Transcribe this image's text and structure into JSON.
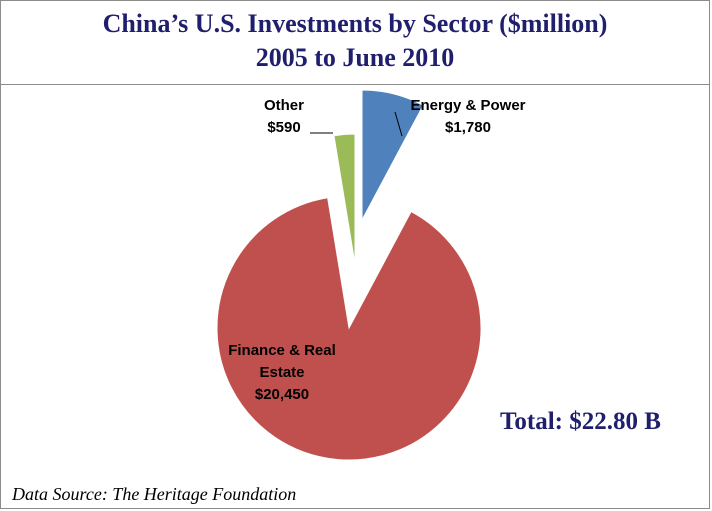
{
  "title_line1": "China’s U.S. Investments by Sector ($million)",
  "title_line2": "2005 to June 2010",
  "total_label": "Total: $22.80 B",
  "source_label": "Data Source: The Heritage Foundation",
  "colors": {
    "title_text": "#1f1f6e",
    "energy": "#4f81bd",
    "finance": "#c0504d",
    "other": "#9bbb59",
    "border": "#8c8c8c"
  },
  "chart_data": {
    "type": "pie",
    "title": "China’s U.S. Investments by Sector ($million)",
    "subtitle": "2005 to June 2010",
    "slices": [
      {
        "name": "Energy & Power",
        "label_lines": [
          "Energy & Power"
        ],
        "value_label": "$1,780",
        "value": 1780,
        "exploded": true
      },
      {
        "name": "Finance & Real Estate",
        "label_lines": [
          "Finance & Real",
          "Estate"
        ],
        "value_label": "$20,450",
        "value": 20450,
        "exploded": true
      },
      {
        "name": "Other",
        "label_lines": [
          "Other"
        ],
        "value_label": "$590",
        "value": 590,
        "exploded": true
      }
    ],
    "start_angle": "12 o'clock",
    "direction": "clockwise",
    "legend": "none",
    "units": "$million"
  }
}
